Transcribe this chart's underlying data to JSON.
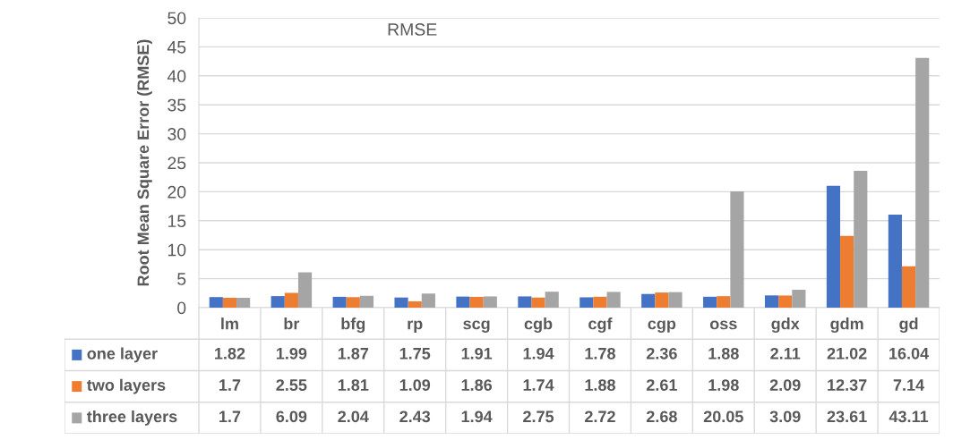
{
  "chart_data": {
    "type": "bar",
    "title": "RMSE",
    "ylabel": "Root Mean Square Error (RMSE)",
    "categories": [
      "lm",
      "br",
      "bfg",
      "rp",
      "scg",
      "cgb",
      "cgf",
      "cgp",
      "oss",
      "gdx",
      "gdm",
      "gd"
    ],
    "series": [
      {
        "name": "one layer",
        "color": "#4472c4",
        "values": [
          1.82,
          1.99,
          1.87,
          1.75,
          1.91,
          1.94,
          1.78,
          2.36,
          1.88,
          2.11,
          21.02,
          16.04
        ]
      },
      {
        "name": "two layers",
        "color": "#ed7d31",
        "values": [
          1.7,
          2.55,
          1.81,
          1.09,
          1.86,
          1.74,
          1.88,
          2.61,
          1.98,
          2.09,
          12.37,
          7.14
        ]
      },
      {
        "name": "three layers",
        "color": "#a5a5a5",
        "values": [
          1.7,
          6.09,
          2.04,
          2.43,
          1.94,
          2.75,
          2.72,
          2.68,
          20.05,
          3.09,
          23.61,
          43.11
        ]
      }
    ],
    "ylim": [
      0,
      50
    ],
    "yticks": [
      0,
      5,
      10,
      15,
      20,
      25,
      30,
      35,
      40,
      45,
      50
    ],
    "grid": "y",
    "legend": "bottom",
    "data_labels": true
  }
}
